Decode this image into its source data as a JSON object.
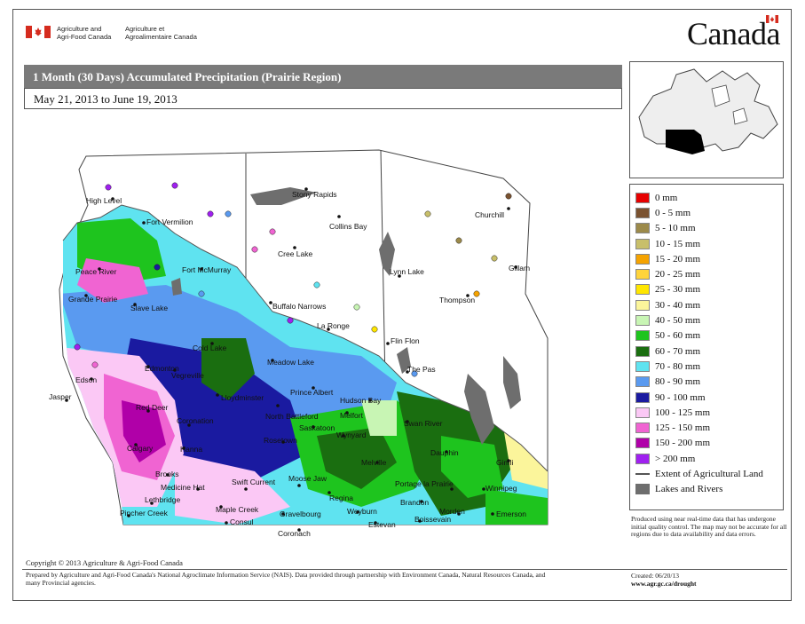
{
  "header": {
    "dept_en": [
      "Agriculture and",
      "Agri-Food Canada"
    ],
    "dept_fr": [
      "Agriculture et",
      "Agroalimentaire Canada"
    ],
    "wordmark": "Canada",
    "flag_colors": {
      "red": "#d52b1e",
      "white": "#ffffff"
    }
  },
  "title": "1 Month (30 Days) Accumulated Precipitation (Prairie Region)",
  "date_range": "May 21, 2013 to June 19, 2013",
  "locator_map": {
    "highlight": "Prairie Region",
    "highlight_color": "#000000"
  },
  "legend": [
    {
      "label": "0 mm",
      "color": "#e60000"
    },
    {
      "label": "0 - 5 mm",
      "color": "#7a5230"
    },
    {
      "label": "5 - 10 mm",
      "color": "#9c8a4a"
    },
    {
      "label": "10 - 15 mm",
      "color": "#c8bf6a"
    },
    {
      "label": "15 - 20 mm",
      "color": "#f5a300"
    },
    {
      "label": "20 - 25 mm",
      "color": "#ffd43b"
    },
    {
      "label": "25 - 30 mm",
      "color": "#ffe600"
    },
    {
      "label": "30 - 40 mm",
      "color": "#fbf59b"
    },
    {
      "label": "40 - 50 mm",
      "color": "#c8f5b4"
    },
    {
      "label": "50 - 60 mm",
      "color": "#1ec41e"
    },
    {
      "label": "60 - 70 mm",
      "color": "#1a6e10"
    },
    {
      "label": "70 - 80 mm",
      "color": "#5fe3f0"
    },
    {
      "label": "80 - 90 mm",
      "color": "#5a9af0"
    },
    {
      "label": "90 - 100 mm",
      "color": "#1a1aa0"
    },
    {
      "label": "100 - 125 mm",
      "color": "#fbc8f5"
    },
    {
      "label": "125 - 150 mm",
      "color": "#f064d2"
    },
    {
      "label": "150 - 200 mm",
      "color": "#b000a8"
    },
    {
      "label": "> 200 mm",
      "color": "#a020f0"
    }
  ],
  "legend_extra": [
    {
      "label": "Extent of Agricultural Land",
      "type": "line",
      "color": "#555555"
    },
    {
      "label": "Lakes and Rivers",
      "type": "fill",
      "color": "#6e6e6e"
    }
  ],
  "places": [
    "High Level",
    "Fort Vermilion",
    "Peace River",
    "Grande Prairie",
    "Slave Lake",
    "Fort McMurray",
    "Stony Rapids",
    "Collins Bay",
    "Cree Lake",
    "Buffalo Narrows",
    "La Ronge",
    "Churchill",
    "Lynn Lake",
    "Gillam",
    "Thompson",
    "Flin Flon",
    "The Pas",
    "Edson",
    "Jasper",
    "Edmonton",
    "Cold Lake",
    "Meadow Lake",
    "Lloydminster",
    "Prince Albert",
    "Hudson Bay",
    "Red Deer",
    "Coronation",
    "North Battleford",
    "Saskatoon",
    "Melfort",
    "Swan River",
    "Calgary",
    "Hanna",
    "Rosetown",
    "Wynyard",
    "Dauphin",
    "Gimli",
    "Brooks",
    "Melville",
    "Medicine Hat",
    "Swift Current",
    "Moose Jaw",
    "Regina",
    "Portage la Prairie",
    "Winnipeg",
    "Brandon",
    "Lethbridge",
    "Pincher Creek",
    "Maple Creek",
    "Consul",
    "Gravelbourg",
    "Weyburn",
    "Estevan",
    "Boissevain",
    "Morden",
    "Emerson",
    "Coronach",
    "Vegreville"
  ],
  "note": "Produced using near real-time data that has undergone initial quality control. The map may not be accurate for all regions due to data availability and data errors.",
  "copyright": "Copyright © 2013 Agriculture & Agri-Food Canada",
  "prepared": "Prepared by Agriculture and Agri-Food Canada's National Agroclimate Information Service (NAIS). Data provided through partnership with Environment Canada, Natural Resources Canada, and many Provincial agencies.",
  "created": "Created: 06/20/13",
  "url": "www.agr.gc.ca/drought"
}
